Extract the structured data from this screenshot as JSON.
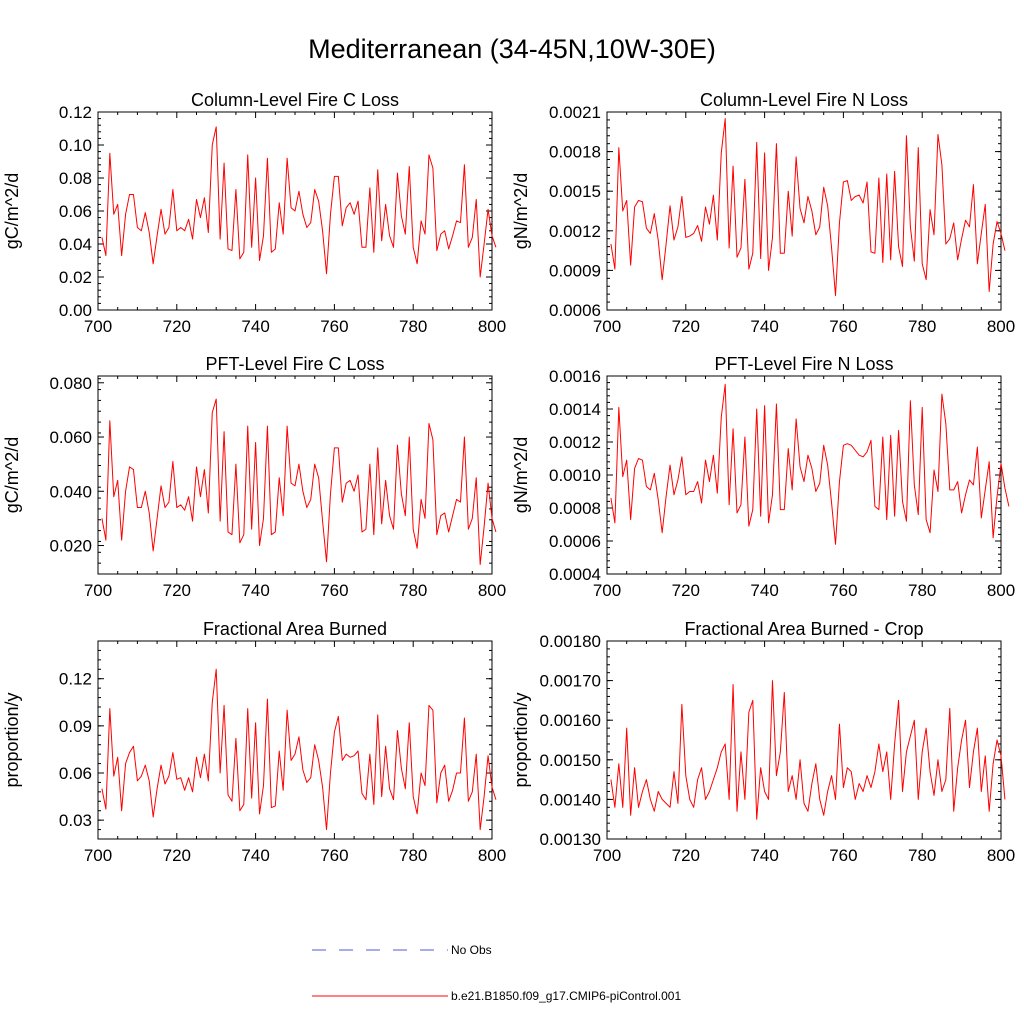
{
  "page_title": "Mediterranean (34-45N,10W-30E)",
  "colors": {
    "model": "#ff0000",
    "obs": "#4d5bd4",
    "axis": "#000000"
  },
  "legend": {
    "obs_label": "No Obs",
    "model_label": "b.e21.B1850.f09_g17.CMIP6-piControl.001"
  },
  "chart_data": [
    {
      "type": "line",
      "title": "Column-Level Fire C Loss",
      "xlabel": "",
      "ylabel": "gC/m^2/d",
      "xlim": [
        700,
        800
      ],
      "ylim": [
        0.0,
        0.12
      ],
      "xticks": [
        700,
        720,
        740,
        760,
        780,
        800
      ],
      "yticks": [
        0.0,
        0.02,
        0.04,
        0.06,
        0.08,
        0.1,
        0.12
      ],
      "ytick_labels": [
        "0.00",
        "0.02",
        "0.04",
        "0.06",
        "0.08",
        "0.10",
        "0.12"
      ],
      "series": [
        {
          "name": "b.e21.B1850.f09_g17.CMIP6-piControl.001",
          "x_start": 701,
          "x_step": 1,
          "values": [
            0.044,
            0.033,
            0.095,
            0.058,
            0.064,
            0.033,
            0.058,
            0.07,
            0.07,
            0.05,
            0.048,
            0.059,
            0.047,
            0.028,
            0.045,
            0.061,
            0.046,
            0.05,
            0.073,
            0.048,
            0.05,
            0.048,
            0.055,
            0.043,
            0.067,
            0.056,
            0.068,
            0.047,
            0.1,
            0.111,
            0.043,
            0.089,
            0.037,
            0.036,
            0.073,
            0.031,
            0.035,
            0.094,
            0.038,
            0.08,
            0.03,
            0.045,
            0.092,
            0.035,
            0.037,
            0.065,
            0.046,
            0.092,
            0.062,
            0.06,
            0.072,
            0.058,
            0.05,
            0.053,
            0.073,
            0.066,
            0.048,
            0.022,
            0.058,
            0.081,
            0.081,
            0.051,
            0.062,
            0.065,
            0.058,
            0.066,
            0.038,
            0.038,
            0.074,
            0.035,
            0.085,
            0.042,
            0.064,
            0.045,
            0.038,
            0.083,
            0.057,
            0.046,
            0.087,
            0.038,
            0.028,
            0.054,
            0.046,
            0.094,
            0.086,
            0.036,
            0.046,
            0.048,
            0.037,
            0.045,
            0.054,
            0.053,
            0.088,
            0.038,
            0.044,
            0.067,
            0.02,
            0.04,
            0.061,
            0.045,
            0.038
          ]
        }
      ]
    },
    {
      "type": "line",
      "title": "Column-Level Fire N Loss",
      "xlabel": "",
      "ylabel": "gN/m^2/d",
      "xlim": [
        700,
        800
      ],
      "ylim": [
        0.0006,
        0.0021
      ],
      "xticks": [
        700,
        720,
        740,
        760,
        780,
        800
      ],
      "yticks": [
        0.0006,
        0.0009,
        0.0012,
        0.0015,
        0.0018,
        0.0021
      ],
      "ytick_labels": [
        "0.0006",
        "0.0009",
        "0.0012",
        "0.0015",
        "0.0018",
        "0.0021"
      ],
      "series": [
        {
          "name": "b.e21.B1850.f09_g17.CMIP6-piControl.001",
          "x_start": 701,
          "x_step": 1,
          "values": [
            0.0011,
            0.00091,
            0.00183,
            0.00135,
            0.00143,
            0.00094,
            0.00138,
            0.00143,
            0.00142,
            0.00122,
            0.00118,
            0.00133,
            0.00113,
            0.00083,
            0.0011,
            0.00139,
            0.00113,
            0.00123,
            0.00146,
            0.00115,
            0.00116,
            0.00118,
            0.00124,
            0.00112,
            0.00138,
            0.00125,
            0.00147,
            0.00113,
            0.00179,
            0.00205,
            0.00107,
            0.00169,
            0.001,
            0.00107,
            0.00159,
            0.00091,
            0.00103,
            0.00187,
            0.00099,
            0.00179,
            0.0009,
            0.00115,
            0.00186,
            0.00103,
            0.00103,
            0.0015,
            0.00116,
            0.00176,
            0.00137,
            0.00126,
            0.00146,
            0.00135,
            0.00117,
            0.00123,
            0.00153,
            0.00139,
            0.00107,
            0.00071,
            0.00126,
            0.00157,
            0.00158,
            0.00143,
            0.00146,
            0.00147,
            0.00141,
            0.00157,
            0.00104,
            0.00103,
            0.0016,
            0.00096,
            0.00163,
            0.00098,
            0.00165,
            0.00108,
            0.00093,
            0.00192,
            0.00123,
            0.00097,
            0.00183,
            0.00095,
            0.00083,
            0.00136,
            0.00117,
            0.00193,
            0.0017,
            0.0011,
            0.00114,
            0.00126,
            0.00098,
            0.00114,
            0.00128,
            0.00123,
            0.00155,
            0.00095,
            0.00118,
            0.0014,
            0.00074,
            0.0011,
            0.00127,
            0.00118,
            0.00105
          ]
        }
      ]
    },
    {
      "type": "line",
      "title": "PFT-Level Fire C Loss",
      "xlabel": "",
      "ylabel": "gC/m^2/d",
      "xlim": [
        700,
        800
      ],
      "ylim": [
        0.0095,
        0.0825
      ],
      "xticks": [
        700,
        720,
        740,
        760,
        780,
        800
      ],
      "yticks": [
        0.02,
        0.04,
        0.06,
        0.08
      ],
      "ytick_labels": [
        "0.020",
        "0.040",
        "0.060",
        "0.080"
      ],
      "series": [
        {
          "name": "b.e21.B1850.f09_g17.CMIP6-piControl.001",
          "x_start": 701,
          "x_step": 1,
          "values": [
            0.03,
            0.022,
            0.066,
            0.038,
            0.044,
            0.022,
            0.04,
            0.049,
            0.048,
            0.034,
            0.034,
            0.04,
            0.032,
            0.018,
            0.03,
            0.042,
            0.034,
            0.036,
            0.051,
            0.034,
            0.035,
            0.033,
            0.038,
            0.029,
            0.049,
            0.038,
            0.048,
            0.032,
            0.069,
            0.074,
            0.029,
            0.062,
            0.025,
            0.024,
            0.05,
            0.021,
            0.024,
            0.064,
            0.026,
            0.058,
            0.02,
            0.03,
            0.064,
            0.024,
            0.025,
            0.045,
            0.031,
            0.064,
            0.043,
            0.042,
            0.05,
            0.04,
            0.034,
            0.037,
            0.05,
            0.045,
            0.029,
            0.014,
            0.039,
            0.056,
            0.056,
            0.036,
            0.043,
            0.044,
            0.04,
            0.046,
            0.025,
            0.026,
            0.05,
            0.024,
            0.056,
            0.028,
            0.044,
            0.031,
            0.026,
            0.057,
            0.039,
            0.031,
            0.06,
            0.026,
            0.019,
            0.037,
            0.03,
            0.065,
            0.059,
            0.024,
            0.031,
            0.032,
            0.025,
            0.031,
            0.037,
            0.036,
            0.06,
            0.026,
            0.03,
            0.045,
            0.013,
            0.027,
            0.043,
            0.03,
            0.025
          ]
        }
      ]
    },
    {
      "type": "line",
      "title": "PFT-Level Fire N Loss",
      "xlabel": "",
      "ylabel": "gN/m^2/d",
      "xlim": [
        700,
        800
      ],
      "ylim": [
        0.0004,
        0.0016
      ],
      "xticks": [
        700,
        720,
        740,
        760,
        780,
        800
      ],
      "yticks": [
        0.0004,
        0.0006,
        0.0008,
        0.001,
        0.0012,
        0.0014,
        0.0016
      ],
      "ytick_labels": [
        "0.0004",
        "0.0006",
        "0.0008",
        "0.0010",
        "0.0012",
        "0.0014",
        "0.0016"
      ],
      "series": [
        {
          "name": "b.e21.B1850.f09_g17.CMIP6-piControl.001",
          "x_start": 701,
          "x_step": 1,
          "values": [
            0.00086,
            0.00071,
            0.00141,
            0.00099,
            0.00109,
            0.00073,
            0.00104,
            0.0011,
            0.00109,
            0.00093,
            0.00091,
            0.00101,
            0.00085,
            0.00065,
            0.00087,
            0.00106,
            0.00088,
            0.00097,
            0.00111,
            0.00088,
            0.0009,
            0.0009,
            0.00096,
            0.00083,
            0.00109,
            0.00096,
            0.00112,
            0.00089,
            0.00135,
            0.00155,
            0.00082,
            0.00128,
            0.00077,
            0.00082,
            0.00123,
            0.00069,
            0.00079,
            0.0014,
            0.00075,
            0.00142,
            0.00071,
            0.00088,
            0.00143,
            0.00079,
            0.00079,
            0.00116,
            0.00091,
            0.00134,
            0.00105,
            0.00096,
            0.00112,
            0.00104,
            0.0009,
            0.00095,
            0.00118,
            0.00106,
            0.00083,
            0.00058,
            0.00096,
            0.00118,
            0.00119,
            0.00118,
            0.00115,
            0.00112,
            0.00111,
            0.00114,
            0.00121,
            0.00081,
            0.00079,
            0.00123,
            0.00073,
            0.00124,
            0.00075,
            0.00127,
            0.00084,
            0.00072,
            0.00145,
            0.00094,
            0.00076,
            0.00141,
            0.00073,
            0.00065,
            0.00103,
            0.0009,
            0.00149,
            0.00131,
            0.00091,
            0.00091,
            0.00096,
            0.00077,
            0.00088,
            0.00097,
            0.00094,
            0.00117,
            0.00074,
            0.00091,
            0.00108,
            0.00062,
            0.00087,
            0.00107,
            0.00092,
            0.00081
          ]
        }
      ]
    },
    {
      "type": "line",
      "title": "Fractional Area Burned",
      "xlabel": "",
      "ylabel": "proportion/y",
      "xlim": [
        700,
        800
      ],
      "ylim": [
        0.018,
        0.144
      ],
      "xticks": [
        700,
        720,
        740,
        760,
        780,
        800
      ],
      "yticks": [
        0.03,
        0.06,
        0.09,
        0.12
      ],
      "ytick_labels": [
        "0.03",
        "0.06",
        "0.09",
        "0.12"
      ],
      "series": [
        {
          "name": "b.e21.B1850.f09_g17.CMIP6-piControl.001",
          "x_start": 701,
          "x_step": 1,
          "values": [
            0.05,
            0.037,
            0.101,
            0.058,
            0.07,
            0.036,
            0.066,
            0.073,
            0.077,
            0.055,
            0.058,
            0.065,
            0.055,
            0.032,
            0.05,
            0.065,
            0.053,
            0.058,
            0.073,
            0.056,
            0.057,
            0.049,
            0.057,
            0.048,
            0.07,
            0.057,
            0.072,
            0.055,
            0.105,
            0.126,
            0.06,
            0.103,
            0.046,
            0.042,
            0.082,
            0.036,
            0.04,
            0.101,
            0.044,
            0.092,
            0.034,
            0.052,
            0.107,
            0.038,
            0.039,
            0.074,
            0.049,
            0.1,
            0.068,
            0.072,
            0.083,
            0.062,
            0.054,
            0.057,
            0.078,
            0.068,
            0.051,
            0.024,
            0.06,
            0.086,
            0.096,
            0.068,
            0.072,
            0.07,
            0.071,
            0.074,
            0.047,
            0.043,
            0.072,
            0.04,
            0.097,
            0.045,
            0.077,
            0.05,
            0.043,
            0.087,
            0.063,
            0.05,
            0.092,
            0.045,
            0.034,
            0.06,
            0.052,
            0.103,
            0.1,
            0.041,
            0.06,
            0.065,
            0.042,
            0.049,
            0.06,
            0.06,
            0.095,
            0.042,
            0.048,
            0.072,
            0.024,
            0.045,
            0.071,
            0.051,
            0.043
          ]
        }
      ]
    },
    {
      "type": "line",
      "title": "Fractional Area Burned - Crop",
      "xlabel": "",
      "ylabel": "proportion/y",
      "xlim": [
        700,
        800
      ],
      "ylim": [
        0.0013,
        0.0018
      ],
      "xticks": [
        700,
        720,
        740,
        760,
        780,
        800
      ],
      "yticks": [
        0.0013,
        0.0014,
        0.0015,
        0.0016,
        0.0017,
        0.0018
      ],
      "ytick_labels": [
        "0.00130",
        "0.00140",
        "0.00150",
        "0.00160",
        "0.00170",
        "0.00180"
      ],
      "series": [
        {
          "name": "b.e21.B1850.f09_g17.CMIP6-piControl.001",
          "x_start": 701,
          "x_step": 1,
          "values": [
            0.00145,
            0.00138,
            0.00149,
            0.00138,
            0.00158,
            0.00136,
            0.00148,
            0.00138,
            0.00142,
            0.00145,
            0.0014,
            0.00137,
            0.00142,
            0.0014,
            0.00139,
            0.00138,
            0.00147,
            0.00139,
            0.00164,
            0.00146,
            0.0014,
            0.00138,
            0.00145,
            0.00148,
            0.0014,
            0.00142,
            0.00145,
            0.00148,
            0.00152,
            0.00154,
            0.0014,
            0.00169,
            0.00137,
            0.00152,
            0.0014,
            0.00162,
            0.00165,
            0.00135,
            0.00148,
            0.00142,
            0.0014,
            0.0017,
            0.00146,
            0.00152,
            0.00167,
            0.00142,
            0.00146,
            0.0014,
            0.0015,
            0.00139,
            0.00137,
            0.00144,
            0.00149,
            0.0014,
            0.00136,
            0.00142,
            0.00146,
            0.0014,
            0.00159,
            0.00143,
            0.00148,
            0.00147,
            0.0014,
            0.00144,
            0.00142,
            0.00146,
            0.00143,
            0.00147,
            0.00154,
            0.00147,
            0.00152,
            0.0014,
            0.00154,
            0.00165,
            0.00142,
            0.00152,
            0.00156,
            0.0016,
            0.0014,
            0.00152,
            0.00158,
            0.00147,
            0.00141,
            0.0015,
            0.00142,
            0.00145,
            0.00163,
            0.00137,
            0.00148,
            0.00155,
            0.0016,
            0.00143,
            0.00152,
            0.00158,
            0.00142,
            0.00151,
            0.00137,
            0.00149,
            0.00155,
            0.00151,
            0.0014
          ]
        }
      ]
    }
  ]
}
